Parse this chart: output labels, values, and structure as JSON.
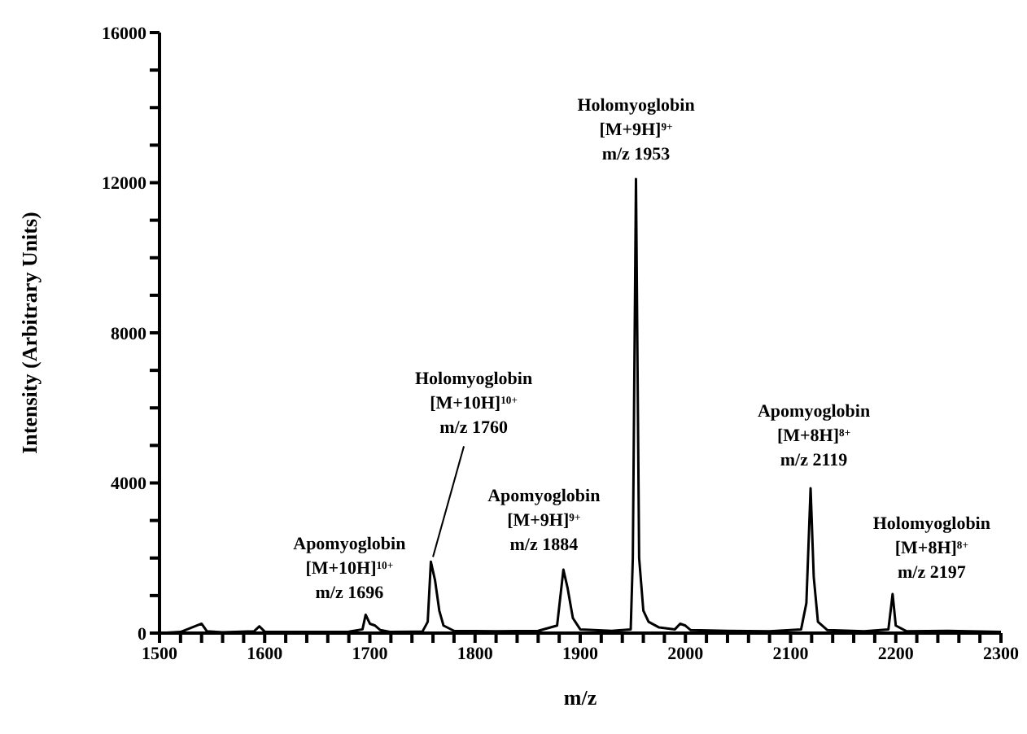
{
  "chart_data": {
    "type": "line",
    "xlabel": "m/z",
    "ylabel": "Intensity (Arbitrary Units)",
    "xlim": [
      1500,
      2300
    ],
    "xticks": [
      1500,
      {
        "value": 1520,
        "label": null
      },
      {
        "value": 1540,
        "label": null
      },
      {
        "value": 1560,
        "label": null
      },
      {
        "value": 1580,
        "label": null
      },
      1600,
      {
        "value": 1620,
        "label": null
      },
      {
        "value": 1640,
        "label": null
      },
      {
        "value": 1660,
        "label": null
      },
      {
        "value": 1680,
        "label": null
      },
      1700,
      {
        "value": 1720,
        "label": null
      },
      {
        "value": 1740,
        "label": null
      },
      {
        "value": 1760,
        "label": null
      },
      {
        "value": 1780,
        "label": null
      },
      1800,
      {
        "value": 1820,
        "label": null
      },
      {
        "value": 1840,
        "label": null
      },
      {
        "value": 1860,
        "label": null
      },
      {
        "value": 1880,
        "label": null
      },
      1900,
      {
        "value": 1920,
        "label": null
      },
      {
        "value": 1940,
        "label": null
      },
      {
        "value": 1960,
        "label": null
      },
      {
        "value": 1980,
        "label": null
      },
      2000,
      {
        "value": 2020,
        "label": null
      },
      {
        "value": 2040,
        "label": null
      },
      {
        "value": 2060,
        "label": null
      },
      {
        "value": 2080,
        "label": null
      },
      2100,
      {
        "value": 2120,
        "label": null
      },
      {
        "value": 2140,
        "label": null
      },
      {
        "value": 2160,
        "label": null
      },
      {
        "value": 2180,
        "label": null
      },
      2200,
      {
        "value": 2220,
        "label": null
      },
      {
        "value": 2240,
        "label": null
      },
      {
        "value": 2260,
        "label": null
      },
      {
        "value": 2280,
        "label": null
      },
      2300
    ],
    "ylim": [
      0,
      16000
    ],
    "yticks": [
      0,
      {
        "value": 1000,
        "label": null
      },
      {
        "value": 2000,
        "label": null
      },
      {
        "value": 3000,
        "label": null
      },
      4000,
      {
        "value": 5000,
        "label": null
      },
      {
        "value": 6000,
        "label": null
      },
      {
        "value": 7000,
        "label": null
      },
      8000,
      {
        "value": 9000,
        "label": null
      },
      {
        "value": 10000,
        "label": null
      },
      {
        "value": 11000,
        "label": null
      },
      12000,
      {
        "value": 13000,
        "label": null
      },
      {
        "value": 14000,
        "label": null
      },
      {
        "value": 15000,
        "label": null
      },
      16000
    ],
    "grid": false,
    "series": [
      {
        "color": "#000000",
        "x": [
          1500,
          1520,
          1540,
          1545,
          1560,
          1590,
          1595,
          1600,
          1640,
          1680,
          1693,
          1696,
          1700,
          1705,
          1710,
          1720,
          1750,
          1755,
          1758,
          1762,
          1766,
          1770,
          1780,
          1820,
          1860,
          1878,
          1884,
          1888,
          1893,
          1900,
          1930,
          1948,
          1950,
          1953,
          1956,
          1960,
          1965,
          1975,
          1990,
          1995,
          2000,
          2005,
          2040,
          2080,
          2110,
          2115,
          2119,
          2122,
          2126,
          2135,
          2170,
          2193,
          2197,
          2200,
          2210,
          2250,
          2290,
          2300
        ],
        "values": [
          0,
          30,
          250,
          50,
          20,
          50,
          180,
          40,
          30,
          40,
          100,
          490,
          250,
          200,
          80,
          30,
          40,
          300,
          1900,
          1400,
          600,
          200,
          60,
          50,
          60,
          200,
          1690,
          1200,
          400,
          100,
          60,
          100,
          2000,
          12100,
          2000,
          600,
          300,
          150,
          100,
          250,
          200,
          80,
          60,
          50,
          100,
          800,
          3860,
          1500,
          300,
          80,
          50,
          100,
          1040,
          200,
          50,
          60,
          40,
          30
        ]
      }
    ],
    "annotations": [
      {
        "text": "Apomyoglobin\n[M+10H]$^{10+}$\nm/z 1696",
        "x": 1696,
        "y": 490
      },
      {
        "text": "Holomyoglobin\n[M+10H]$^{10+}$\nm/z 1760",
        "x": 1760,
        "y": 1900
      },
      {
        "text": "Apomyoglobin\n[M+9H]$^{9+}$\nm/z 1884",
        "x": 1884,
        "y": 1690
      },
      {
        "text": "Holomyoglobin\n[M+9H]$^{9+}$\nm/z 1953",
        "x": 1953,
        "y": 12100
      },
      {
        "text": "Apomyoglobin\n[M+8H]$^{8+}$\nm/z 2119",
        "x": 2119,
        "y": 3860
      },
      {
        "text": "Holomyoglobin\n[M+8H]$^{8+}$\nm/z 2197",
        "x": 2197,
        "y": 1040
      }
    ]
  }
}
